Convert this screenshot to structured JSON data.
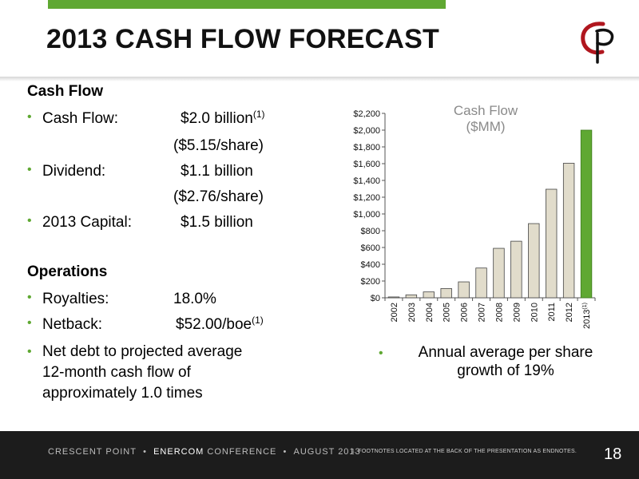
{
  "slide": {
    "title": "2013 CASH FLOW FORECAST",
    "accent_color": "#5fa832",
    "page_number": "18"
  },
  "left": {
    "cash_flow_heading": "Cash Flow",
    "cash_flow_items": [
      {
        "label": "Cash Flow:",
        "value": "$2.0 billion",
        "sup": "(1)",
        "sub": "($5.15/share)"
      },
      {
        "label": "Dividend:",
        "value": "$1.1 billion",
        "sup": "",
        "sub": "($2.76/share)"
      },
      {
        "label": "2013 Capital:",
        "value": "$1.5 billion",
        "sup": "",
        "sub": ""
      }
    ],
    "operations_heading": "Operations",
    "operations_items": [
      {
        "label": "Royalties:",
        "value": "18.0%",
        "sup": ""
      },
      {
        "label": "Netback:",
        "value": "$52.00/boe",
        "sup": "(1)"
      }
    ],
    "debt_text": [
      "Net debt to projected average",
      "12-month cash flow of",
      "approximately 1.0 times"
    ]
  },
  "note": {
    "line1": "Annual average per share",
    "line2": "growth of 19%"
  },
  "footer": {
    "company": "CRESCENT POINT",
    "sep": "•",
    "conference_bold": "ENERCOM",
    "conference_rest": " CONFERENCE",
    "date": "AUGUST 2013",
    "footnote": "1.     FOOTNOTES LOCATED AT THE BACK OF THE PRESENTATION AS ENDNOTES."
  },
  "chart_data": {
    "type": "bar",
    "title": "Cash Flow",
    "subtitle": "($MM)",
    "categories": [
      "2002",
      "2003",
      "2004",
      "2005",
      "2006",
      "2007",
      "2008",
      "2009",
      "2010",
      "2011",
      "2012",
      "2013"
    ],
    "category_superscripts": {
      "2013": "(1)"
    },
    "values": [
      10,
      35,
      70,
      110,
      190,
      355,
      590,
      675,
      885,
      1295,
      1605,
      2000
    ],
    "bar_color": "#e1dccb",
    "highlight_color": "#5fa832",
    "highlight_index": 11,
    "ylim": [
      0,
      2200
    ],
    "ytick_step": 200,
    "ytick_labels": [
      "$0",
      "$200",
      "$400",
      "$600",
      "$800",
      "$1,000",
      "$1,200",
      "$1,400",
      "$1,600",
      "$1,800",
      "$2,000",
      "$2,200"
    ],
    "grid": false,
    "legend": "none"
  }
}
